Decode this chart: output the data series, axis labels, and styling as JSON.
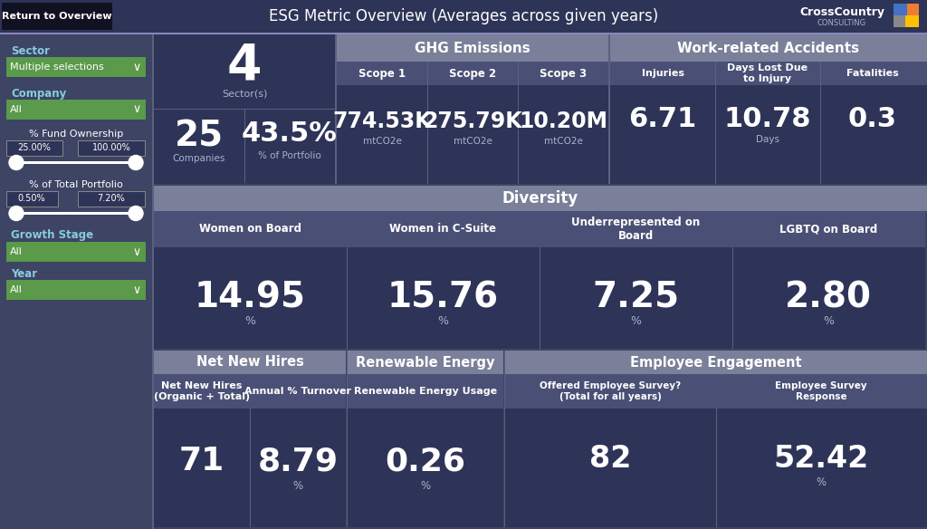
{
  "title": "ESG Metric Overview (Averages across given years)",
  "bg_color": "#3d4464",
  "panel_dark": "#2e3457",
  "panel_mid": "#3d4464",
  "header_color": "#7a8099",
  "green_color": "#5a9a4a",
  "white": "#ffffff",
  "light_gray": "#aab0cc",
  "border_color": "#6a70a0",
  "sub_header_color": "#4a5075",
  "left_panel": {
    "sector_label": "Sector",
    "sector_value": "Multiple selections",
    "company_label": "Company",
    "company_value": "All",
    "fund_ownership_label": "% Fund Ownership",
    "fund_ownership_min": "25.00%",
    "fund_ownership_max": "100.00%",
    "portfolio_label": "% of Total Portfolio",
    "portfolio_min": "0.50%",
    "portfolio_max": "7.20%",
    "growth_label": "Growth Stage",
    "growth_value": "All",
    "year_label": "Year",
    "year_value": "All"
  },
  "top_left": {
    "sectors": "4",
    "sectors_label": "Sector(s)",
    "companies": "25",
    "companies_label": "Companies",
    "portfolio_pct": "43.5%",
    "portfolio_label": "% of Portfolio"
  },
  "ghg": {
    "title": "GHG Emissions",
    "scope1_label": "Scope 1",
    "scope1_value": "774.53K",
    "scope1_unit": "mtCO2e",
    "scope2_label": "Scope 2",
    "scope2_value": "275.79K",
    "scope2_unit": "mtCO2e",
    "scope3_label": "Scope 3",
    "scope3_value": "10.20M",
    "scope3_unit": "mtCO2e"
  },
  "accidents": {
    "title": "Work-related Accidents",
    "injuries_label": "Injuries",
    "injuries_value": "6.71",
    "days_lost_label": "Days Lost Due\nto Injury",
    "days_lost_value": "10.78",
    "days_lost_unit": "Days",
    "fatalities_label": "Fatalities",
    "fatalities_value": "0.3"
  },
  "diversity": {
    "title": "Diversity",
    "women_board_label": "Women on Board",
    "women_board_value": "14.95",
    "women_board_unit": "%",
    "women_csuite_label": "Women in C-Suite",
    "women_csuite_value": "15.76",
    "women_csuite_unit": "%",
    "underrep_label": "Underrepresented on\nBoard",
    "underrep_value": "7.25",
    "underrep_unit": "%",
    "lgbtq_label": "LGBTQ on Board",
    "lgbtq_value": "2.80",
    "lgbtq_unit": "%"
  },
  "hires": {
    "title": "Net New Hires",
    "net_hires_label": "Net New Hires\n(Organic + Total)",
    "net_hires_value": "71",
    "turnover_label": "Annual % Turnover",
    "turnover_value": "8.79",
    "turnover_unit": "%"
  },
  "renewable": {
    "title": "Renewable Energy",
    "usage_label": "Renewable Energy Usage",
    "usage_value": "0.26",
    "usage_unit": "%"
  },
  "engagement": {
    "title": "Employee Engagement",
    "survey_label": "Offered Employee Survey?\n(Total for all years)",
    "survey_value": "82",
    "response_label": "Employee Survey\nResponse",
    "response_value": "52.42",
    "response_unit": "%"
  }
}
